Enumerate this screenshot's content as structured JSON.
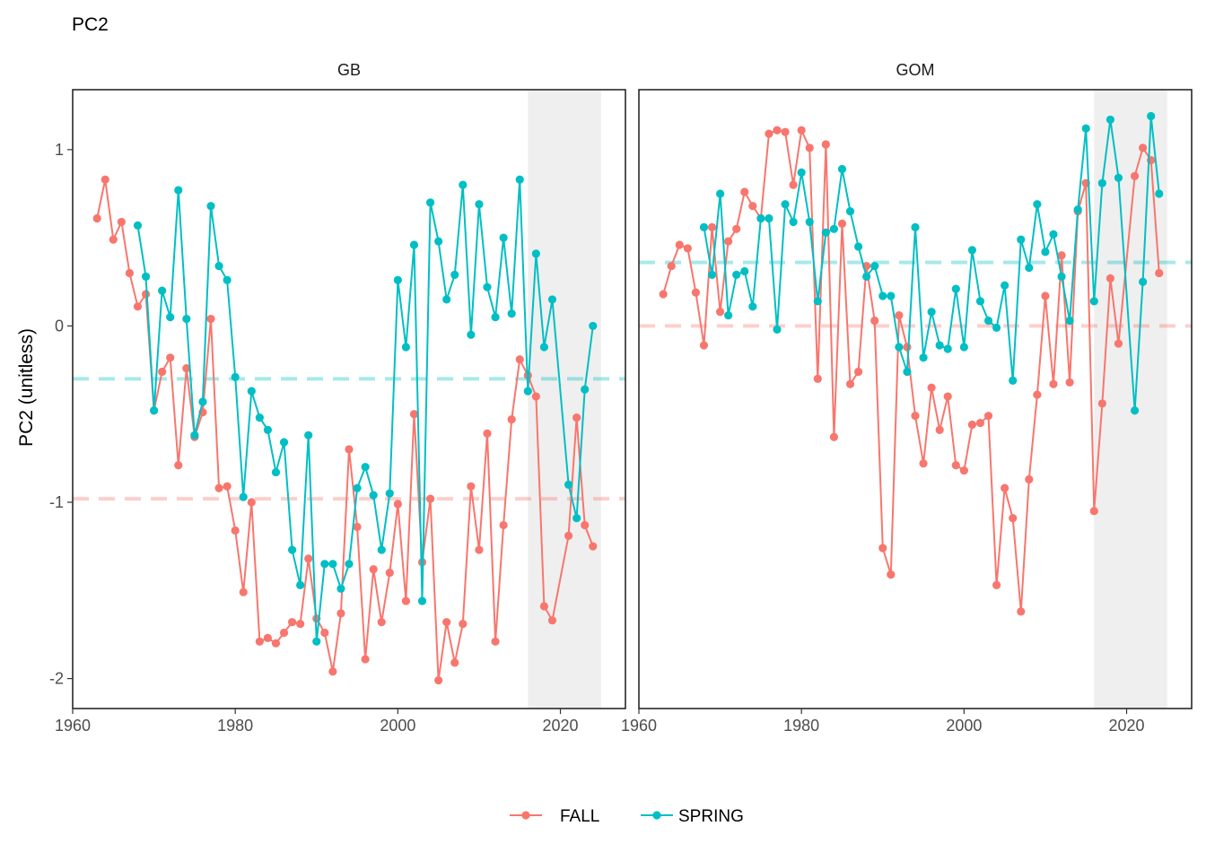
{
  "title": "PC2",
  "ylabel": "PC2 (unitless)",
  "legend": [
    {
      "name": "FALL",
      "color": "#F8766D"
    },
    {
      "name": "SPRING",
      "color": "#00BFC4"
    }
  ],
  "chart_data": {
    "type": "line",
    "title": "PC2",
    "xlabel": "",
    "ylabel": "PC2 (unitless)",
    "xlim": [
      1960,
      2028
    ],
    "ylim": [
      -2.17,
      1.34
    ],
    "x_ticks": [
      1960,
      1980,
      2000,
      2020
    ],
    "y_ticks": [
      -2,
      -1,
      0,
      1
    ],
    "legend_position": "bottom",
    "grid": false,
    "colors": {
      "FALL": "#F8766D",
      "SPRING": "#00BFC4",
      "shade": "#EFEFEF"
    },
    "panels": [
      {
        "name": "GB",
        "shaded_x": [
          2016,
          2025
        ],
        "reference_lines": {
          "FALL": -0.98,
          "SPRING": -0.3
        },
        "series": [
          {
            "name": "FALL",
            "x": [
              1963,
              1964,
              1965,
              1966,
              1967,
              1968,
              1969,
              1970,
              1971,
              1972,
              1973,
              1974,
              1975,
              1976,
              1977,
              1978,
              1979,
              1980,
              1981,
              1982,
              1983,
              1984,
              1985,
              1986,
              1987,
              1988,
              1989,
              1990,
              1991,
              1992,
              1993,
              1994,
              1995,
              1996,
              1997,
              1998,
              1999,
              2000,
              2001,
              2002,
              2003,
              2004,
              2005,
              2006,
              2007,
              2008,
              2009,
              2010,
              2011,
              2012,
              2013,
              2014,
              2015,
              2016,
              2017,
              2018,
              2019,
              2021,
              2022,
              2023,
              2024
            ],
            "y": [
              0.61,
              0.83,
              0.49,
              0.59,
              0.3,
              0.11,
              0.18,
              -0.48,
              -0.26,
              -0.18,
              -0.79,
              -0.24,
              -0.63,
              -0.49,
              0.04,
              -0.92,
              -0.91,
              -1.16,
              -1.51,
              -1.0,
              -1.79,
              -1.77,
              -1.8,
              -1.74,
              -1.68,
              -1.69,
              -1.32,
              -1.66,
              -1.74,
              -1.96,
              -1.63,
              -0.7,
              -1.14,
              -1.89,
              -1.38,
              -1.68,
              -1.4,
              -1.01,
              -1.56,
              -0.5,
              -1.34,
              -0.98,
              -2.01,
              -1.68,
              -1.91,
              -1.69,
              -0.91,
              -1.27,
              -0.61,
              -1.79,
              -1.13,
              -0.53,
              -0.19,
              -0.28,
              -0.4,
              -1.59,
              -1.67,
              -1.19,
              -0.52,
              -1.13,
              -1.25
            ]
          },
          {
            "name": "SPRING",
            "x": [
              1968,
              1969,
              1970,
              1971,
              1972,
              1973,
              1974,
              1975,
              1976,
              1977,
              1978,
              1979,
              1980,
              1981,
              1982,
              1983,
              1984,
              1985,
              1986,
              1987,
              1988,
              1989,
              1990,
              1991,
              1992,
              1993,
              1994,
              1995,
              1996,
              1997,
              1998,
              1999,
              2000,
              2001,
              2002,
              2003,
              2004,
              2005,
              2006,
              2007,
              2008,
              2009,
              2010,
              2011,
              2012,
              2013,
              2014,
              2015,
              2016,
              2017,
              2018,
              2019,
              2021,
              2022,
              2023,
              2024
            ],
            "y": [
              0.57,
              0.28,
              -0.48,
              0.2,
              0.05,
              0.77,
              0.04,
              -0.62,
              -0.43,
              0.68,
              0.34,
              0.26,
              -0.29,
              -0.97,
              -0.37,
              -0.52,
              -0.59,
              -0.83,
              -0.66,
              -1.27,
              -1.47,
              -0.62,
              -1.79,
              -1.35,
              -1.35,
              -1.49,
              -1.35,
              -0.92,
              -0.8,
              -0.96,
              -1.27,
              -0.95,
              0.26,
              -0.12,
              0.46,
              -1.56,
              0.7,
              0.48,
              0.15,
              0.29,
              0.8,
              -0.05,
              0.69,
              0.22,
              0.05,
              0.5,
              0.07,
              0.83,
              -0.37,
              0.41,
              -0.12,
              0.15,
              -0.9,
              -1.09,
              -0.36,
              0.0
            ]
          }
        ]
      },
      {
        "name": "GOM",
        "shaded_x": [
          2016,
          2025
        ],
        "reference_lines": {
          "FALL": 0.0,
          "SPRING": 0.36
        },
        "series": [
          {
            "name": "FALL",
            "x": [
              1963,
              1964,
              1965,
              1966,
              1967,
              1968,
              1969,
              1970,
              1971,
              1972,
              1973,
              1974,
              1975,
              1976,
              1977,
              1978,
              1979,
              1980,
              1981,
              1982,
              1983,
              1984,
              1985,
              1986,
              1987,
              1988,
              1989,
              1990,
              1991,
              1992,
              1993,
              1994,
              1995,
              1996,
              1997,
              1998,
              1999,
              2000,
              2001,
              2002,
              2003,
              2004,
              2005,
              2006,
              2007,
              2008,
              2009,
              2010,
              2011,
              2012,
              2013,
              2014,
              2015,
              2016,
              2017,
              2018,
              2019,
              2021,
              2022,
              2023,
              2024
            ],
            "y": [
              0.18,
              0.34,
              0.46,
              0.44,
              0.19,
              -0.11,
              0.56,
              0.08,
              0.48,
              0.55,
              0.76,
              0.68,
              0.61,
              1.09,
              1.11,
              1.1,
              0.8,
              1.11,
              1.01,
              -0.3,
              1.03,
              -0.63,
              0.58,
              -0.33,
              -0.26,
              0.34,
              0.03,
              -1.26,
              -1.41,
              0.06,
              -0.12,
              -0.51,
              -0.78,
              -0.35,
              -0.59,
              -0.4,
              -0.79,
              -0.82,
              -0.56,
              -0.55,
              -0.51,
              -1.47,
              -0.92,
              -1.09,
              -1.62,
              -0.87,
              -0.39,
              0.17,
              -0.33,
              0.4,
              -0.32,
              0.65,
              0.81,
              -1.05,
              -0.44,
              0.27,
              -0.1,
              0.85,
              1.01,
              0.94,
              0.3
            ]
          },
          {
            "name": "SPRING",
            "x": [
              1968,
              1969,
              1970,
              1971,
              1972,
              1973,
              1974,
              1975,
              1976,
              1977,
              1978,
              1979,
              1980,
              1981,
              1982,
              1983,
              1984,
              1985,
              1986,
              1987,
              1988,
              1989,
              1990,
              1991,
              1992,
              1993,
              1994,
              1995,
              1996,
              1997,
              1998,
              1999,
              2000,
              2001,
              2002,
              2003,
              2004,
              2005,
              2006,
              2007,
              2008,
              2009,
              2010,
              2011,
              2012,
              2013,
              2014,
              2015,
              2016,
              2017,
              2018,
              2019,
              2021,
              2022,
              2023,
              2024
            ],
            "y": [
              0.56,
              0.29,
              0.75,
              0.06,
              0.29,
              0.31,
              0.11,
              0.61,
              0.61,
              -0.02,
              0.69,
              0.59,
              0.87,
              0.59,
              0.14,
              0.53,
              0.55,
              0.89,
              0.65,
              0.45,
              0.28,
              0.34,
              0.17,
              0.17,
              -0.12,
              -0.26,
              0.56,
              -0.18,
              0.08,
              -0.11,
              -0.13,
              0.21,
              -0.12,
              0.43,
              0.14,
              0.03,
              -0.01,
              0.23,
              -0.31,
              0.49,
              0.33,
              0.69,
              0.42,
              0.52,
              0.28,
              0.03,
              0.66,
              1.12,
              0.14,
              0.81,
              1.17,
              0.84,
              -0.48,
              0.25,
              1.19,
              0.75
            ]
          }
        ]
      }
    ]
  }
}
